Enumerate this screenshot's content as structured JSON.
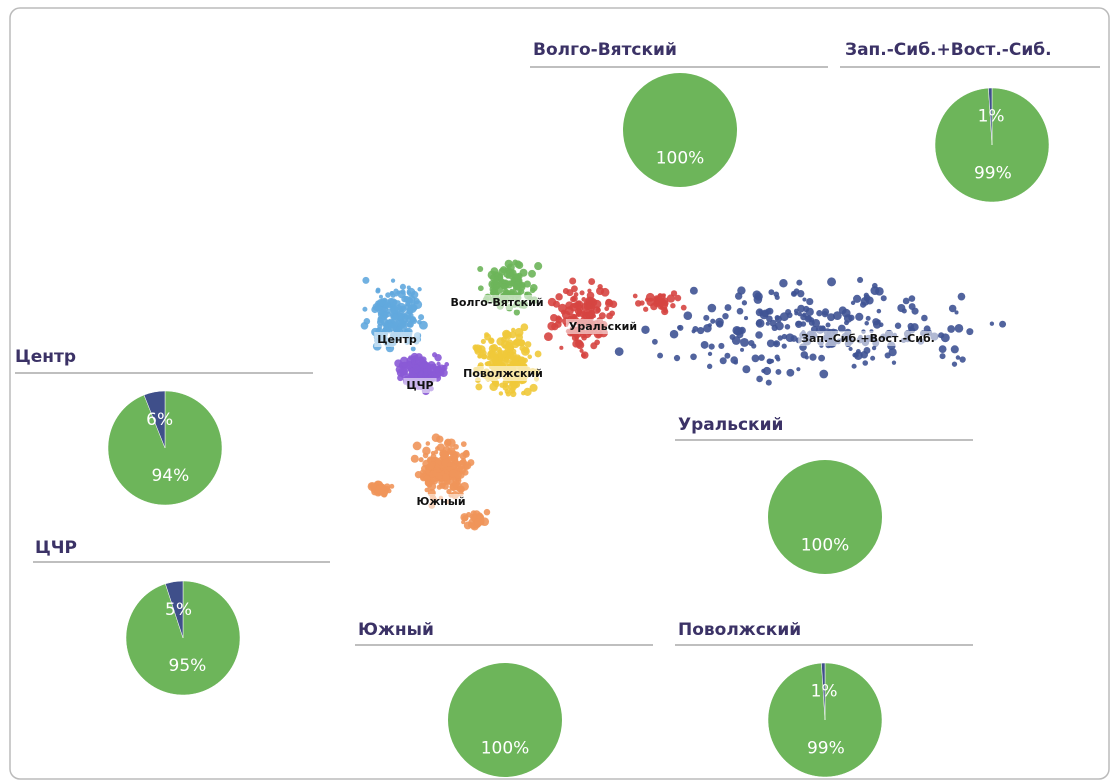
{
  "chart_data": [
    {
      "type": "pie",
      "title": "Волго-Вятский",
      "values": [
        100
      ],
      "value_labels": [
        "100%"
      ],
      "colors": [
        "#6db55a"
      ]
    },
    {
      "type": "pie",
      "title": "Зап.-Сиб.+Вост.-Сиб.",
      "values": [
        99,
        1
      ],
      "value_labels": [
        "99%",
        "1%"
      ],
      "colors": [
        "#6db55a",
        "#3f4f8a"
      ]
    },
    {
      "type": "pie",
      "title": "Центр",
      "values": [
        94,
        6
      ],
      "value_labels": [
        "94%",
        "6%"
      ],
      "colors": [
        "#6db55a",
        "#3f4f8a"
      ]
    },
    {
      "type": "pie",
      "title": "ЦЧР",
      "values": [
        95,
        5
      ],
      "value_labels": [
        "95%",
        "5%"
      ],
      "colors": [
        "#6db55a",
        "#3f4f8a"
      ]
    },
    {
      "type": "pie",
      "title": "Уральский",
      "values": [
        100
      ],
      "value_labels": [
        "100%"
      ],
      "colors": [
        "#6db55a"
      ]
    },
    {
      "type": "pie",
      "title": "Южный",
      "values": [
        100
      ],
      "value_labels": [
        "100%"
      ],
      "colors": [
        "#6db55a"
      ]
    },
    {
      "type": "pie",
      "title": "Поволжский",
      "values": [
        99,
        1
      ],
      "value_labels": [
        "99%",
        "1%"
      ],
      "colors": [
        "#6db55a",
        "#3f4f8a"
      ]
    }
  ],
  "map_labels": [
    "Центр",
    "ЦЧР",
    "Волго-Вятский",
    "Поволжский",
    "Уральский",
    "Зап.-Сиб.+Вост.-Сиб.",
    "Южный"
  ]
}
